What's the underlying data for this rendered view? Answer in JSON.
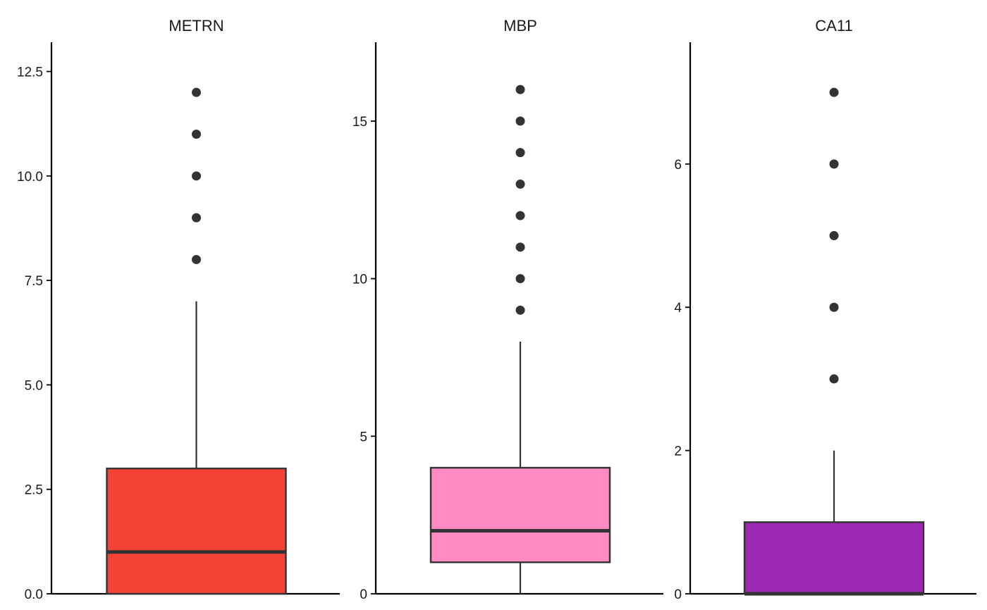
{
  "chart_data": [
    {
      "type": "box",
      "title": "METRN",
      "color": "#F44336",
      "ylim": [
        0,
        13.2
      ],
      "ticks": [
        0,
        2.5,
        5,
        7.5,
        10,
        12.5
      ],
      "tick_labels": [
        "0.0",
        "2.5",
        "5.0",
        "7.5",
        "10.0",
        "12.5"
      ],
      "stats": {
        "min": 0,
        "q1": 0,
        "median": 1,
        "q3": 3,
        "max": 7
      },
      "outliers": [
        8,
        9,
        10,
        11,
        12
      ],
      "grid": false
    },
    {
      "type": "box",
      "title": "MBP",
      "color": "#FF8AC4",
      "ylim": [
        0,
        17.5
      ],
      "ticks": [
        0,
        5,
        10,
        15
      ],
      "tick_labels": [
        "0",
        "5",
        "10",
        "15"
      ],
      "stats": {
        "min": 0,
        "q1": 1,
        "median": 2,
        "q3": 4,
        "max": 8
      },
      "outliers": [
        9,
        10,
        11,
        12,
        13,
        14,
        15,
        16
      ],
      "grid": false
    },
    {
      "type": "box",
      "title": "CA11",
      "color": "#9C27B0",
      "ylim": [
        0,
        7.7
      ],
      "ticks": [
        0,
        2,
        4,
        6
      ],
      "tick_labels": [
        "0",
        "2",
        "4",
        "6"
      ],
      "stats": {
        "min": 0,
        "q1": 0,
        "median": 0,
        "q3": 1,
        "max": 2
      },
      "outliers": [
        3,
        4,
        5,
        6,
        7
      ],
      "grid": false
    }
  ]
}
